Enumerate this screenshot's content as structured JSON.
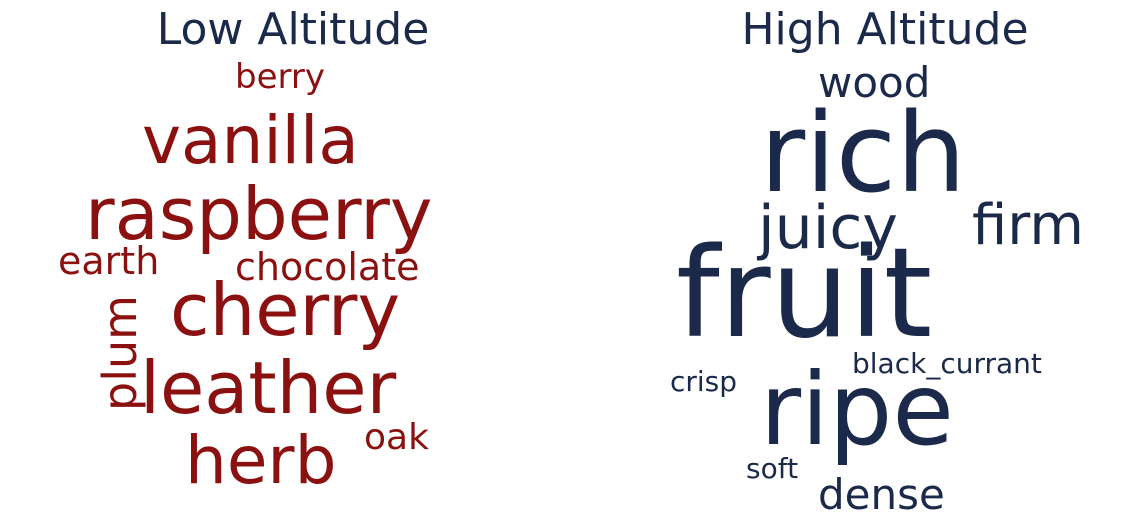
{
  "clouds": [
    {
      "title": "Low Altitude",
      "color": "#8b1111",
      "words": [
        {
          "text": "berry"
        },
        {
          "text": "vanilla"
        },
        {
          "text": "raspberry"
        },
        {
          "text": "earth"
        },
        {
          "text": "chocolate"
        },
        {
          "text": "cherry"
        },
        {
          "text": "plum"
        },
        {
          "text": "leather"
        },
        {
          "text": "oak"
        },
        {
          "text": "herb"
        }
      ]
    },
    {
      "title": "High Altitude",
      "color": "#1b2a4a",
      "words": [
        {
          "text": "wood"
        },
        {
          "text": "rich"
        },
        {
          "text": "juicy"
        },
        {
          "text": "firm"
        },
        {
          "text": "fruit"
        },
        {
          "text": "black_currant"
        },
        {
          "text": "crisp"
        },
        {
          "text": "ripe"
        },
        {
          "text": "soft"
        },
        {
          "text": "dense"
        }
      ]
    }
  ]
}
